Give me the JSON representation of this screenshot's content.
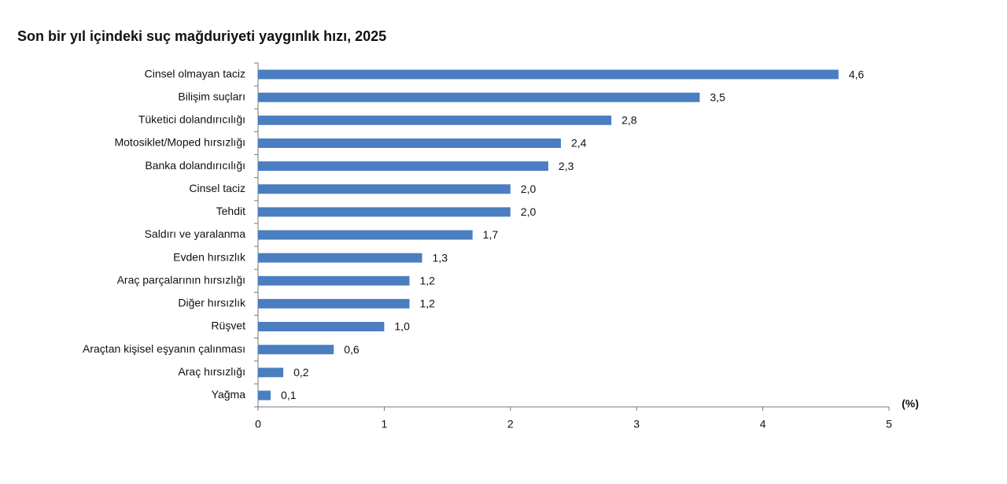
{
  "chart_data": {
    "type": "hbar",
    "title": "Son bir yıl içindeki suç mağduriyeti yaygınlık hızı, 2025",
    "x_label": "(%)",
    "categories": [
      "Cinsel olmayan taciz",
      "Bilişim suçları",
      "Tüketici dolandırıcılığı",
      "Motosiklet/Moped hırsızlığı",
      "Banka dolandırıcılığı",
      "Cinsel taciz",
      "Tehdit",
      "Saldırı ve yaralanma",
      "Evden hırsızlık",
      "Araç parçalarının hırsızlığı",
      "Diğer hırsızlık",
      "Rüşvet",
      "Araçtan kişisel eşyanın çalınması",
      "Araç hırsızlığı",
      "Yağma"
    ],
    "values": [
      4.6,
      3.5,
      2.8,
      2.4,
      2.3,
      2.0,
      2.0,
      1.7,
      1.3,
      1.2,
      1.2,
      1.0,
      0.6,
      0.2,
      0.1
    ],
    "value_labels": [
      "4,6",
      "3,5",
      "2,8",
      "2,4",
      "2,3",
      "2,0",
      "2,0",
      "1,7",
      "1,3",
      "1,2",
      "1,2",
      "1,0",
      "0,6",
      "0,2",
      "0,1"
    ],
    "color": "#4a7ec0",
    "xlim": [
      0,
      5
    ],
    "xticks": [
      0,
      1,
      2,
      3,
      4,
      5
    ]
  }
}
